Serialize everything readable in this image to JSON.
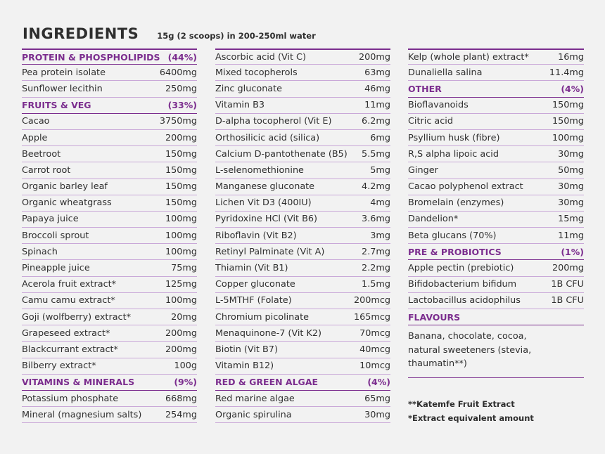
{
  "header": {
    "title": "INGREDIENTS",
    "subtitle": "15g (2 scoops) in 200-250ml water"
  },
  "columns": [
    [
      {
        "section": true,
        "name": "PROTEIN & PHOSPHOLIPIDS",
        "amount": "(44%)"
      },
      {
        "name": "Pea protein isolate",
        "amount": "6400mg"
      },
      {
        "name": "Sunflower lecithin",
        "amount": "250mg"
      },
      {
        "section": true,
        "name": "FRUITS & VEG",
        "amount": "(33%)"
      },
      {
        "name": "Cacao",
        "amount": "3750mg"
      },
      {
        "name": "Apple",
        "amount": "200mg"
      },
      {
        "name": "Beetroot",
        "amount": "150mg"
      },
      {
        "name": "Carrot root",
        "amount": "150mg"
      },
      {
        "name": "Organic barley leaf",
        "amount": "150mg"
      },
      {
        "name": "Organic wheatgrass",
        "amount": "150mg"
      },
      {
        "name": "Papaya juice",
        "amount": "100mg"
      },
      {
        "name": "Broccoli sprout",
        "amount": "100mg"
      },
      {
        "name": "Spinach",
        "amount": "100mg"
      },
      {
        "name": "Pineapple juice",
        "amount": "75mg"
      },
      {
        "name": "Acerola fruit extract*",
        "amount": "125mg"
      },
      {
        "name": "Camu camu extract*",
        "amount": "100mg"
      },
      {
        "name": "Goji (wolfberry) extract*",
        "amount": "20mg"
      },
      {
        "name": "Grapeseed extract*",
        "amount": "200mg"
      },
      {
        "name": "Blackcurrant extract*",
        "amount": "200mg"
      },
      {
        "name": "Bilberry extract*",
        "amount": "100g"
      },
      {
        "section": true,
        "name": "VITAMINS & MINERALS",
        "amount": "(9%)"
      },
      {
        "name": "Potassium phosphate",
        "amount": "668mg"
      },
      {
        "name": "Mineral (magnesium salts)",
        "amount": "254mg"
      }
    ],
    [
      {
        "name": "Ascorbic acid (Vit C)",
        "amount": "200mg"
      },
      {
        "name": "Mixed tocopherols",
        "amount": "63mg"
      },
      {
        "name": "Zinc gluconate",
        "amount": "46mg"
      },
      {
        "name": "Vitamin B3",
        "amount": "11mg"
      },
      {
        "name": "D-alpha tocopherol (Vit E)",
        "amount": "6.2mg"
      },
      {
        "name": "Orthosilicic acid (silica)",
        "amount": "6mg"
      },
      {
        "name": "Calcium D-pantothenate (B5)",
        "amount": "5.5mg"
      },
      {
        "name": "L-selenomethionine",
        "amount": "5mg"
      },
      {
        "name": "Manganese gluconate",
        "amount": "4.2mg"
      },
      {
        "name": "Lichen Vit D3 (400IU)",
        "amount": "4mg"
      },
      {
        "name": "Pyridoxine HCl (Vit B6)",
        "amount": "3.6mg"
      },
      {
        "name": "Riboflavin (Vit B2)",
        "amount": "3mg"
      },
      {
        "name": "Retinyl Palminate (Vit A)",
        "amount": "2.7mg"
      },
      {
        "name": "Thiamin (Vit B1)",
        "amount": "2.2mg"
      },
      {
        "name": "Copper gluconate",
        "amount": "1.5mg"
      },
      {
        "name": "L-5MTHF (Folate)",
        "amount": "200mcg"
      },
      {
        "name": "Chromium picolinate",
        "amount": "165mcg"
      },
      {
        "name": "Menaquinone-7 (Vit K2)",
        "amount": "70mcg"
      },
      {
        "name": "Biotin (Vit B7)",
        "amount": "40mcg"
      },
      {
        "name": "Vitamin B12)",
        "amount": "10mcg"
      },
      {
        "section": true,
        "name": "RED & GREEN ALGAE",
        "amount": "(4%)"
      },
      {
        "name": "Red marine algae",
        "amount": "65mg"
      },
      {
        "name": "Organic spirulina",
        "amount": "30mg"
      }
    ],
    [
      {
        "name": "Kelp (whole plant) extract*",
        "amount": "16mg"
      },
      {
        "name": "Dunaliella salina",
        "amount": "11.4mg"
      },
      {
        "section": true,
        "name": "OTHER",
        "amount": "(4%)"
      },
      {
        "name": "Bioflavanoids",
        "amount": "150mg"
      },
      {
        "name": "Citric acid",
        "amount": "150mg"
      },
      {
        "name": "Psyllium husk (fibre)",
        "amount": "100mg"
      },
      {
        "name": "R,S alpha lipoic acid",
        "amount": "30mg"
      },
      {
        "name": "Ginger",
        "amount": "50mg"
      },
      {
        "name": "Cacao polyphenol extract",
        "amount": "30mg"
      },
      {
        "name": "Bromelain (enzymes)",
        "amount": "30mg"
      },
      {
        "name": "Dandelion*",
        "amount": "15mg"
      },
      {
        "name": "Beta glucans (70%)",
        "amount": "11mg"
      },
      {
        "section": true,
        "name": "PRE & PROBIOTICS",
        "amount": "(1%)"
      },
      {
        "name": "Apple pectin (prebiotic)",
        "amount": "200mg"
      },
      {
        "name": "Bifidobacterium bifidum",
        "amount": "1B CFU"
      },
      {
        "name": "Lactobacillus acidophilus",
        "amount": "1B CFU"
      },
      {
        "section": true,
        "name": "FLAVOURS",
        "amount": ""
      }
    ]
  ],
  "flavours_text": "Banana, chocolate, cocoa,\nnatural sweeteners (stevia,\nthaumatin**)",
  "footnotes": [
    "**Katemfe Fruit Extract",
    "*Extract equivalent amount"
  ],
  "colors": {
    "accent": "#7b2d8e",
    "rule": "#c9a8d8",
    "text": "#2f2f2f",
    "background": "#f2f2f2"
  }
}
